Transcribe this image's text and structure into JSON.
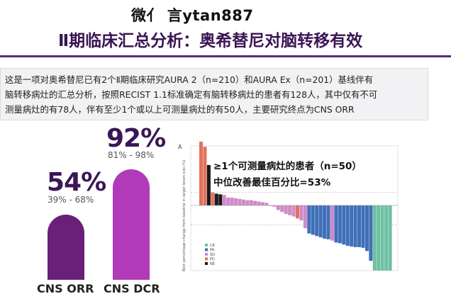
{
  "watermark": "微亻 言ytan887",
  "title": "Ⅱ期临床汇总分析：奥希替尼对脑转移有效",
  "description": [
    "这是一项对奥希替尼已有2个Ⅱ期临床研究AURA 2（n=210）和AURA Ex（n=201）基线伴有",
    "脑转移病灶的汇总分析，按照RECIST 1.1标准确定有脑转移病灶的患者有128人，其中仅有不可",
    "测量病灶的有78人，伴有至少1个或以上可测量病灶的有50人，主要研究终点为CNS ORR"
  ],
  "colors": {
    "title": "#3a1553",
    "orr": "#6a1f79",
    "dcr": "#b03ab8"
  },
  "chart_data": [
    {
      "type": "bar",
      "categories": [
        "CNS ORR",
        "CNS DCR"
      ],
      "values": [
        54,
        92
      ],
      "value_labels": [
        "54%",
        "92%"
      ],
      "ci_labels": [
        "39% - 68%",
        "81% - 98%"
      ],
      "ylim": [
        0,
        100
      ]
    },
    {
      "type": "bar",
      "panel_label": "A",
      "annotation_line1": "≥1个可测量病灶的患者（n=50）",
      "annotation_line2": "中位改善最佳百分比=53%",
      "ylabel": "Best percentage change from baseline in target lesion size (%)",
      "legend": [
        {
          "label": "CR",
          "color": "#6fc1a3"
        },
        {
          "label": "PR",
          "color": "#3f6fb8"
        },
        {
          "label": "SD",
          "color": "#d08ac8"
        },
        {
          "label": "PD",
          "color": "#e3725d"
        },
        {
          "label": "NE",
          "color": "#1a1a1a"
        }
      ],
      "legend_position": "bottom-left",
      "ylim": [
        -100,
        100
      ],
      "reference_lines": [
        20,
        -30
      ],
      "values": [
        100,
        90,
        62,
        20,
        18,
        17,
        16,
        12,
        12,
        11,
        10,
        9,
        8,
        8,
        7,
        6,
        5,
        4,
        0,
        -2,
        -7,
        -10,
        -13,
        -15,
        -17,
        -20,
        -23,
        -35,
        -43,
        -45,
        -47,
        -49,
        -51,
        -52,
        -54,
        -57,
        -58,
        -60,
        -62,
        -63,
        -64,
        -64,
        -65,
        -70,
        -85,
        -100,
        -100,
        -100,
        -100,
        -100
      ],
      "status": [
        "PD",
        "PD",
        "NE",
        "PD",
        "NE",
        "NE",
        "SD",
        "SD",
        "SD",
        "SD",
        "SD",
        "SD",
        "SD",
        "SD",
        "SD",
        "SD",
        "SD",
        "SD",
        "SD",
        "SD",
        "SD",
        "SD",
        "SD",
        "SD",
        "SD",
        "PD",
        "SD",
        "SD",
        "PR",
        "PR",
        "PR",
        "PR",
        "PR",
        "PR",
        "SD",
        "PR",
        "PR",
        "PR",
        "PR",
        "PR",
        "PR",
        "PR",
        "PR",
        "PR",
        "PR",
        "CR",
        "CR",
        "CR",
        "CR",
        "CR"
      ]
    }
  ]
}
